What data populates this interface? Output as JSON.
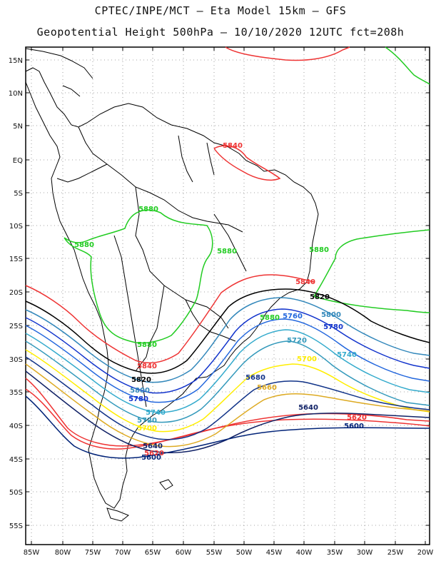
{
  "title_line1": "CPTEC/INPE/MCT –  Eta Model 15km – GFS",
  "title_line2": "Geopotential Height 500hPa – 10/10/2020 12UTC fct=208h",
  "lat_ticks": [
    "15N",
    "10N",
    "5N",
    "EQ",
    "5S",
    "10S",
    "15S",
    "20S",
    "25S",
    "30S",
    "35S",
    "40S",
    "45S",
    "50S",
    "55S"
  ],
  "lon_ticks": [
    "85W",
    "80W",
    "75W",
    "70W",
    "65W",
    "60W",
    "55W",
    "50W",
    "45W",
    "40W",
    "35W",
    "30W",
    "25W",
    "20W"
  ],
  "colors": {
    "c5880": "#22cc22",
    "c5860": "#ee3333",
    "c5840": "#ee3333",
    "c5820": "#000000",
    "c5800": "#3388bb",
    "c5780": "#1133cc",
    "c5760": "#2266dd",
    "c5740": "#33aacc",
    "c5720": "#3399bb",
    "c5700": "#ffee00",
    "c5680": "#113388",
    "c5660": "#ddaa22",
    "c5640": "#112266",
    "c5620": "#ee3333",
    "c5600": "#002277"
  },
  "contour_labels": [
    {
      "id": "l5840a",
      "text": "5840",
      "color": "#ee3333"
    },
    {
      "id": "l5880a",
      "text": "5880",
      "color": "#22cc22"
    },
    {
      "id": "l5880b",
      "text": "5880",
      "color": "#22cc22"
    },
    {
      "id": "l5880c",
      "text": "5880",
      "color": "#22cc22"
    },
    {
      "id": "l5880d",
      "text": "5880",
      "color": "#22cc22"
    },
    {
      "id": "l5880e",
      "text": "5880",
      "color": "#22cc22"
    },
    {
      "id": "l5840b",
      "text": "5840",
      "color": "#ee3333"
    },
    {
      "id": "l5820a",
      "text": "5820",
      "color": "#000000"
    },
    {
      "id": "l5800a",
      "text": "5800",
      "color": "#3388bb"
    },
    {
      "id": "l5760a",
      "text": "5760",
      "color": "#2266dd"
    },
    {
      "id": "l5780a",
      "text": "5780",
      "color": "#1133cc"
    },
    {
      "id": "l5720a",
      "text": "5720",
      "color": "#3399bb"
    },
    {
      "id": "l5740a",
      "text": "5740",
      "color": "#33aacc"
    },
    {
      "id": "l5700a",
      "text": "5700",
      "color": "#ffee00"
    },
    {
      "id": "l5680a",
      "text": "5680",
      "color": "#113388"
    },
    {
      "id": "l5660a",
      "text": "5660",
      "color": "#ddaa22"
    },
    {
      "id": "l5640a",
      "text": "5640",
      "color": "#112266"
    },
    {
      "id": "l5620a",
      "text": "5620",
      "color": "#ee3333"
    },
    {
      "id": "l5600a",
      "text": "5600",
      "color": "#002277"
    },
    {
      "id": "l5880f",
      "text": "5880",
      "color": "#22cc22"
    },
    {
      "id": "l5840c",
      "text": "5840",
      "color": "#ee3333"
    },
    {
      "id": "l5820b",
      "text": "5820",
      "color": "#000000"
    },
    {
      "id": "l5800b",
      "text": "5800",
      "color": "#3388bb"
    },
    {
      "id": "l5780b",
      "text": "5780",
      "color": "#1133cc"
    },
    {
      "id": "l5760b",
      "text": "5760",
      "color": "#2266dd"
    },
    {
      "id": "l5740b",
      "text": "5740",
      "color": "#33aacc"
    },
    {
      "id": "l5720b",
      "text": "5720",
      "color": "#3399bb"
    },
    {
      "id": "l5700b",
      "text": "5700",
      "color": "#ffee00"
    },
    {
      "id": "l5640b",
      "text": "5640",
      "color": "#112266"
    },
    {
      "id": "l5620b",
      "text": "5620",
      "color": "#ee3333"
    },
    {
      "id": "l5600b",
      "text": "5600",
      "color": "#002277"
    }
  ]
}
